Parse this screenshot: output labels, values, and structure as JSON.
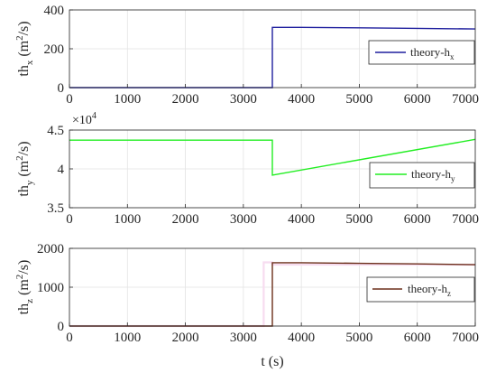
{
  "chart_data": [
    {
      "type": "line",
      "id": "x",
      "ylabel": {
        "base": "th",
        "sub": "x",
        "paren_open": " (m",
        "sup": "2",
        "paren_close": "/s)"
      },
      "xlim": [
        0,
        7000
      ],
      "ylim": [
        0,
        400
      ],
      "yticks": [
        0,
        200,
        400
      ],
      "ytick_labels": [
        "0",
        "200",
        "400"
      ],
      "xticks": [
        0,
        1000,
        2000,
        3000,
        4000,
        5000,
        6000,
        7000
      ],
      "xtick_labels": [
        "0",
        "1000",
        "2000",
        "3000",
        "4000",
        "5000",
        "6000",
        "7000"
      ],
      "grid": true,
      "legend_position": "right",
      "series": [
        {
          "name": {
            "base": "theory-h",
            "sub": "x"
          },
          "color": "#1f1f9e",
          "points": [
            [
              0,
              0
            ],
            [
              3500,
              0
            ],
            [
              3500,
              310
            ],
            [
              4000,
              310
            ],
            [
              5000,
              308
            ],
            [
              6000,
              305
            ],
            [
              7000,
              302
            ]
          ]
        }
      ]
    },
    {
      "type": "line",
      "id": "y",
      "ylabel": {
        "base": "th",
        "sub": "y",
        "paren_open": " (m",
        "sup": "2",
        "paren_close": "/s)"
      },
      "exponent_label": {
        "base": "×10",
        "sup": "4"
      },
      "xlim": [
        0,
        7000
      ],
      "ylim": [
        3.5,
        4.5
      ],
      "yticks": [
        3.5,
        4,
        4.5
      ],
      "ytick_labels": [
        "3.5",
        "4",
        "4.5"
      ],
      "xticks": [
        0,
        1000,
        2000,
        3000,
        4000,
        5000,
        6000,
        7000
      ],
      "xtick_labels": [
        "0",
        "1000",
        "2000",
        "3000",
        "4000",
        "5000",
        "6000",
        "7000"
      ],
      "grid": true,
      "legend_position": "right",
      "series": [
        {
          "name": {
            "base": "theory-h",
            "sub": "y"
          },
          "color": "#22ee22",
          "points": [
            [
              0,
              4.37
            ],
            [
              3500,
              4.37
            ],
            [
              3500,
              3.92
            ],
            [
              7000,
              4.38
            ]
          ]
        }
      ]
    },
    {
      "type": "line",
      "id": "z",
      "ylabel": {
        "base": "th",
        "sub": "z",
        "paren_open": " (m",
        "sup": "2",
        "paren_close": "/s)"
      },
      "xlabel": "t (s)",
      "xlim": [
        0,
        7000
      ],
      "ylim": [
        0,
        2000
      ],
      "yticks": [
        0,
        1000,
        2000
      ],
      "ytick_labels": [
        "0",
        "1000",
        "2000"
      ],
      "xticks": [
        0,
        1000,
        2000,
        3000,
        4000,
        5000,
        6000,
        7000
      ],
      "xtick_labels": [
        "0",
        "1000",
        "2000",
        "3000",
        "4000",
        "5000",
        "6000",
        "7000"
      ],
      "grid": true,
      "legend_position": "right",
      "series": [
        {
          "name": {
            "base": "theory-h",
            "sub": "z"
          },
          "color": "#6b2f1a",
          "points": [
            [
              0,
              0
            ],
            [
              3500,
              0
            ],
            [
              3500,
              1630
            ],
            [
              4000,
              1630
            ],
            [
              5000,
              1615
            ],
            [
              6000,
              1600
            ],
            [
              7000,
              1580
            ]
          ]
        },
        {
          "name": "",
          "color": "#f7dcf0",
          "points": [
            [
              0,
              0
            ],
            [
              3350,
              0
            ],
            [
              3350,
              1640
            ],
            [
              3500,
              1640
            ],
            [
              3500,
              1580
            ],
            [
              7000,
              1580
            ]
          ]
        }
      ]
    }
  ]
}
